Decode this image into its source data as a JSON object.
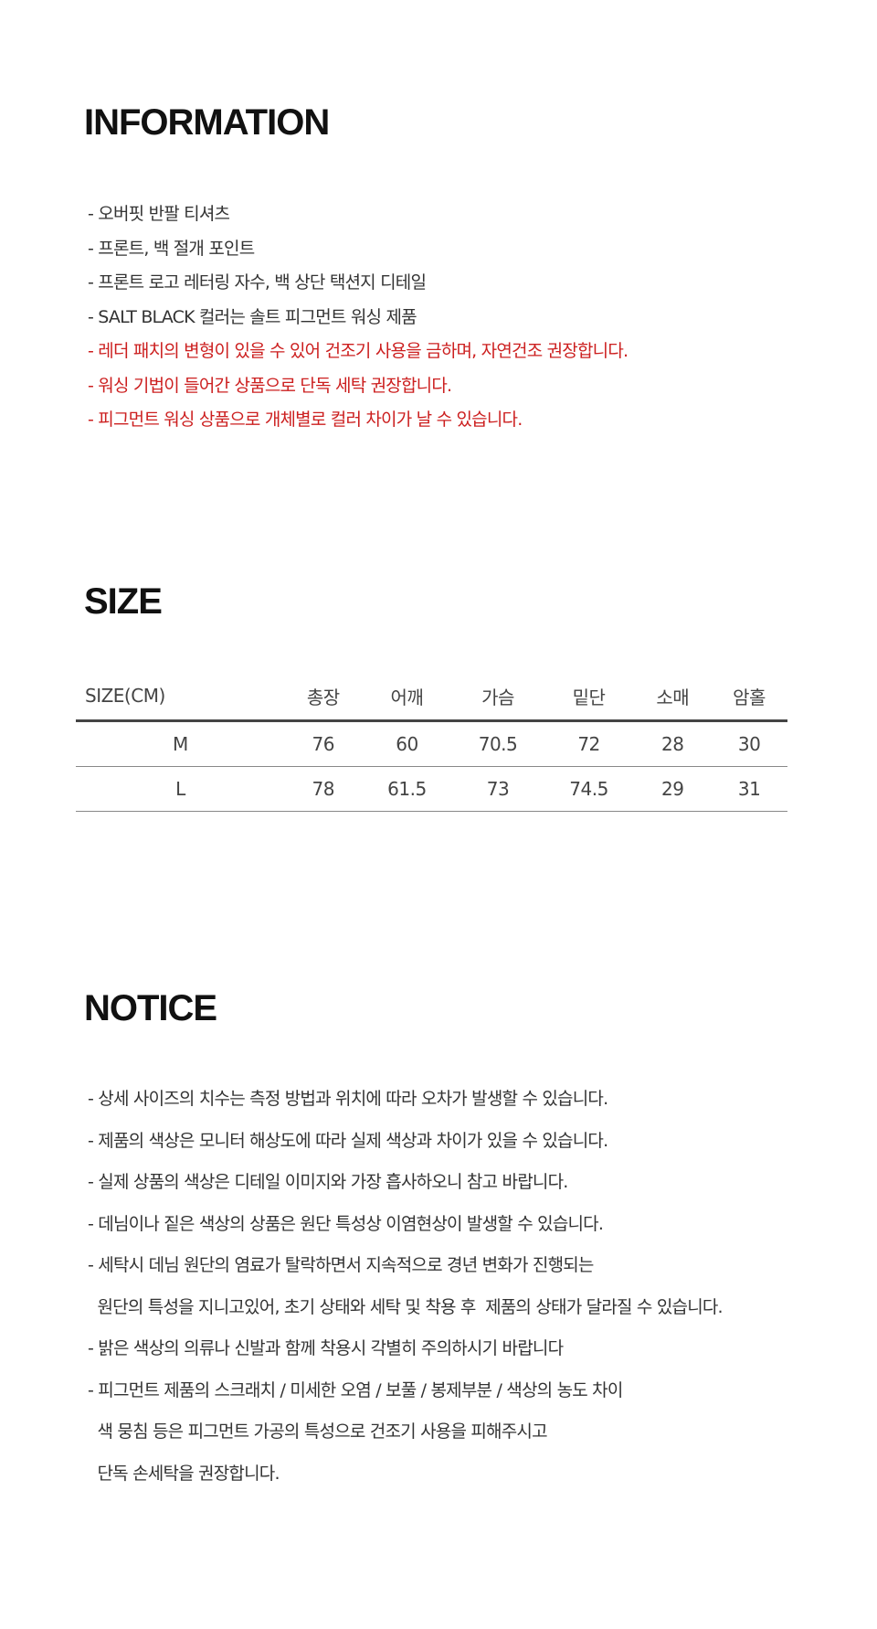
{
  "information": {
    "title": "INFORMATION",
    "lines": [
      {
        "text": "- 오버핏 반팔 티셔츠",
        "highlight": false
      },
      {
        "text": "- 프론트, 백 절개 포인트",
        "highlight": false
      },
      {
        "text": "- 프론트 로고 레터링 자수, 백 상단 택션지 디테일",
        "highlight": false
      },
      {
        "text": "- SALT BLACK 컬러는 솔트 피그먼트 워싱 제품",
        "highlight": false
      },
      {
        "text": "- 레더 패치의 변형이 있을 수 있어 건조기 사용을 금하며, 자연건조 권장합니다.",
        "highlight": true
      },
      {
        "text": "- 워싱 기법이 들어간 상품으로 단독 세탁 권장합니다.",
        "highlight": true
      },
      {
        "text": "- 피그먼트 워싱 상품으로 개체별로 컬러 차이가 날 수 있습니다.",
        "highlight": true
      }
    ],
    "highlight_color": "#cc1f1f"
  },
  "size": {
    "title": "SIZE",
    "headers": [
      "SIZE(CM)",
      "총장",
      "어깨",
      "가슴",
      "밑단",
      "소매",
      "암홀"
    ],
    "rows": [
      [
        "M",
        "76",
        "60",
        "70.5",
        "72",
        "28",
        "30"
      ],
      [
        "L",
        "78",
        "61.5",
        "73",
        "74.5",
        "29",
        "31"
      ]
    ]
  },
  "notice": {
    "title": "NOTICE",
    "lines": [
      "- 상세 사이즈의 치수는 측정 방법과 위치에 따라 오차가 발생할 수 있습니다.",
      "- 제품의 색상은 모니터 해상도에 따라 실제 색상과 차이가 있을 수 있습니다.",
      "- 실제 상품의 색상은 디테일 이미지와 가장 흡사하오니 참고 바랍니다.",
      "- 데님이나 짙은 색상의 상품은 원단 특성상 이염현상이 발생할 수 있습니다.",
      "- 세탁시 데님 원단의 염료가 탈락하면서 지속적으로 경년 변화가 진행되는",
      "  원단의 특성을 지니고있어, 초기 상태와 세탁 및 착용 후  제품의 상태가 달라질 수 있습니다.",
      "- 밝은 색상의 의류나 신발과 함께 착용시 각별히 주의하시기 바랍니다",
      "- 피그먼트 제품의 스크래치 / 미세한 오염 / 보풀 / 봉제부분 / 색상의 농도 차이",
      "  색 뭉침 등은 피그먼트 가공의 특성으로 건조기 사용을 피해주시고",
      "  단독 손세탁을 권장합니다."
    ]
  }
}
